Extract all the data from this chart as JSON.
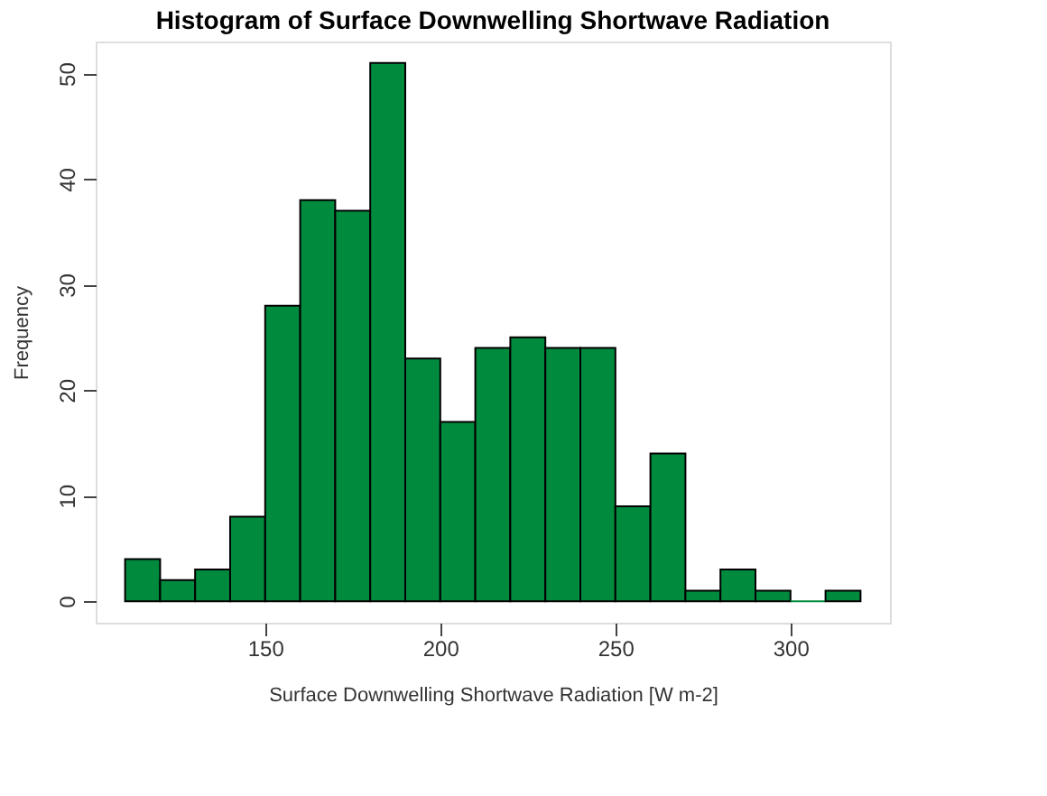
{
  "chart_data": {
    "type": "histogram",
    "title": "Histogram of Surface Downwelling Shortwave Radiation",
    "xlabel": "Surface Downwelling Shortwave Radiation [W m-2]",
    "ylabel": "Frequency",
    "bins": [
      110,
      120,
      130,
      140,
      150,
      160,
      170,
      180,
      190,
      200,
      210,
      220,
      230,
      240,
      250,
      260,
      270,
      280,
      290,
      300,
      310,
      320
    ],
    "values": [
      4,
      2,
      3,
      8,
      28,
      38,
      37,
      51,
      23,
      17,
      24,
      25,
      24,
      24,
      9,
      14,
      1,
      3,
      1,
      0,
      1
    ],
    "color": "#008a3e",
    "xlim": [
      101.6,
      328.4
    ],
    "xticks": [
      150,
      200,
      250,
      300
    ],
    "ylim": [
      -2.04,
      53.04
    ],
    "yticks": [
      0,
      10,
      20,
      30,
      40,
      50
    ],
    "grid": false
  }
}
